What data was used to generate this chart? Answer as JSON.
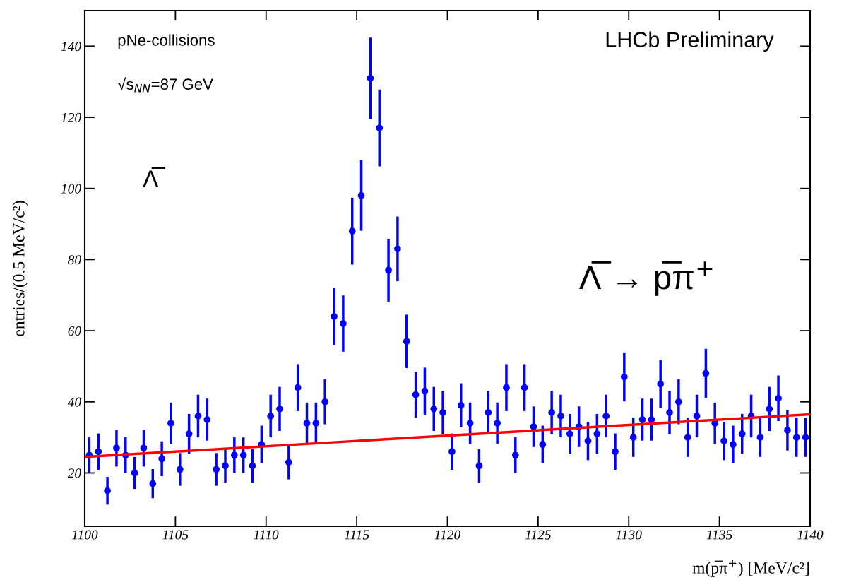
{
  "chart_data": {
    "type": "scatter",
    "xlabel": "m(p̅π$^{+}$) [MeV/c²]",
    "ylabel": "entries/(0.5 MeV/c²)",
    "xlim": [
      1100,
      1140
    ],
    "xticks": [
      1100,
      1105,
      1110,
      1115,
      1120,
      1125,
      1130,
      1135,
      1140
    ],
    "ylim": [
      5,
      150
    ],
    "yticks": [
      20,
      40,
      60,
      80,
      100,
      120,
      140
    ],
    "marker": "circle",
    "annotations": [
      "pNe-collisions",
      "√s$_{NN}$=87 GeV",
      "Λ̅",
      "LHCb Preliminary",
      "Λ̅ → p̅π$^{+}$"
    ],
    "series": [
      {
        "color": "#0000ff",
        "x": [
          1100.25,
          1100.75,
          1101.25,
          1101.75,
          1102.25,
          1102.75,
          1103.25,
          1103.75,
          1104.25,
          1104.75,
          1105.25,
          1105.75,
          1106.25,
          1106.75,
          1107.25,
          1107.75,
          1108.25,
          1108.75,
          1109.25,
          1109.75,
          1110.25,
          1110.75,
          1111.25,
          1111.75,
          1112.25,
          1112.75,
          1113.25,
          1113.75,
          1114.25,
          1114.75,
          1115.25,
          1115.75,
          1116.25,
          1116.75,
          1117.25,
          1117.75,
          1118.25,
          1118.75,
          1119.25,
          1119.75,
          1120.25,
          1120.75,
          1121.25,
          1121.75,
          1122.25,
          1122.75,
          1123.25,
          1123.75,
          1124.25,
          1124.75,
          1125.25,
          1125.75,
          1126.25,
          1126.75,
          1127.25,
          1127.75,
          1128.25,
          1128.75,
          1129.25,
          1129.75,
          1130.25,
          1130.75,
          1131.25,
          1131.75,
          1132.25,
          1132.75,
          1133.25,
          1133.75,
          1134.25,
          1134.75,
          1135.25,
          1135.75,
          1136.25,
          1136.75,
          1137.25,
          1137.75,
          1138.25,
          1138.75,
          1139.25,
          1139.75
        ],
        "values": [
          25,
          26,
          15,
          27,
          25,
          20,
          27,
          17,
          24,
          34,
          21,
          31,
          36,
          35,
          21,
          22,
          25,
          25,
          22,
          28,
          36,
          38,
          23,
          44,
          34,
          34,
          40,
          64,
          62,
          88,
          98,
          131,
          117,
          77,
          83,
          57,
          42,
          43,
          38,
          37,
          26,
          39,
          34,
          22,
          37,
          34,
          44,
          25,
          44,
          33,
          28,
          37,
          36,
          31,
          33,
          29,
          31,
          36,
          26,
          47,
          30,
          35,
          35,
          45,
          37,
          40,
          30,
          36,
          48,
          34,
          29,
          28,
          31,
          36,
          30,
          38,
          41,
          32,
          30,
          30
        ],
        "errors": [
          5,
          5.1,
          3.9,
          5.2,
          5,
          4.5,
          5.2,
          4.1,
          4.9,
          5.8,
          4.6,
          5.6,
          6,
          5.9,
          4.6,
          4.7,
          5,
          5,
          4.7,
          5.3,
          6,
          6.2,
          4.8,
          6.6,
          5.8,
          5.8,
          6.3,
          8,
          7.9,
          9.4,
          9.9,
          11.4,
          10.8,
          8.8,
          9.1,
          7.5,
          6.5,
          6.6,
          6.2,
          6.1,
          5.1,
          6.2,
          5.8,
          4.7,
          6.1,
          5.8,
          6.6,
          5,
          6.6,
          5.7,
          5.3,
          6.1,
          6,
          5.6,
          5.7,
          5.4,
          5.6,
          6,
          5.1,
          6.9,
          5.5,
          5.9,
          5.9,
          6.7,
          6.1,
          6.3,
          5.5,
          6,
          6.9,
          5.8,
          5.4,
          5.3,
          5.6,
          6,
          5.5,
          6.2,
          6.4,
          5.7,
          5.5,
          5.5
        ]
      },
      {
        "type": "line",
        "color": "#ff0000",
        "x": [
          1100,
          1140
        ],
        "values": [
          24.5,
          36.5
        ],
        "line_style": "solid",
        "marker": "none"
      }
    ]
  }
}
